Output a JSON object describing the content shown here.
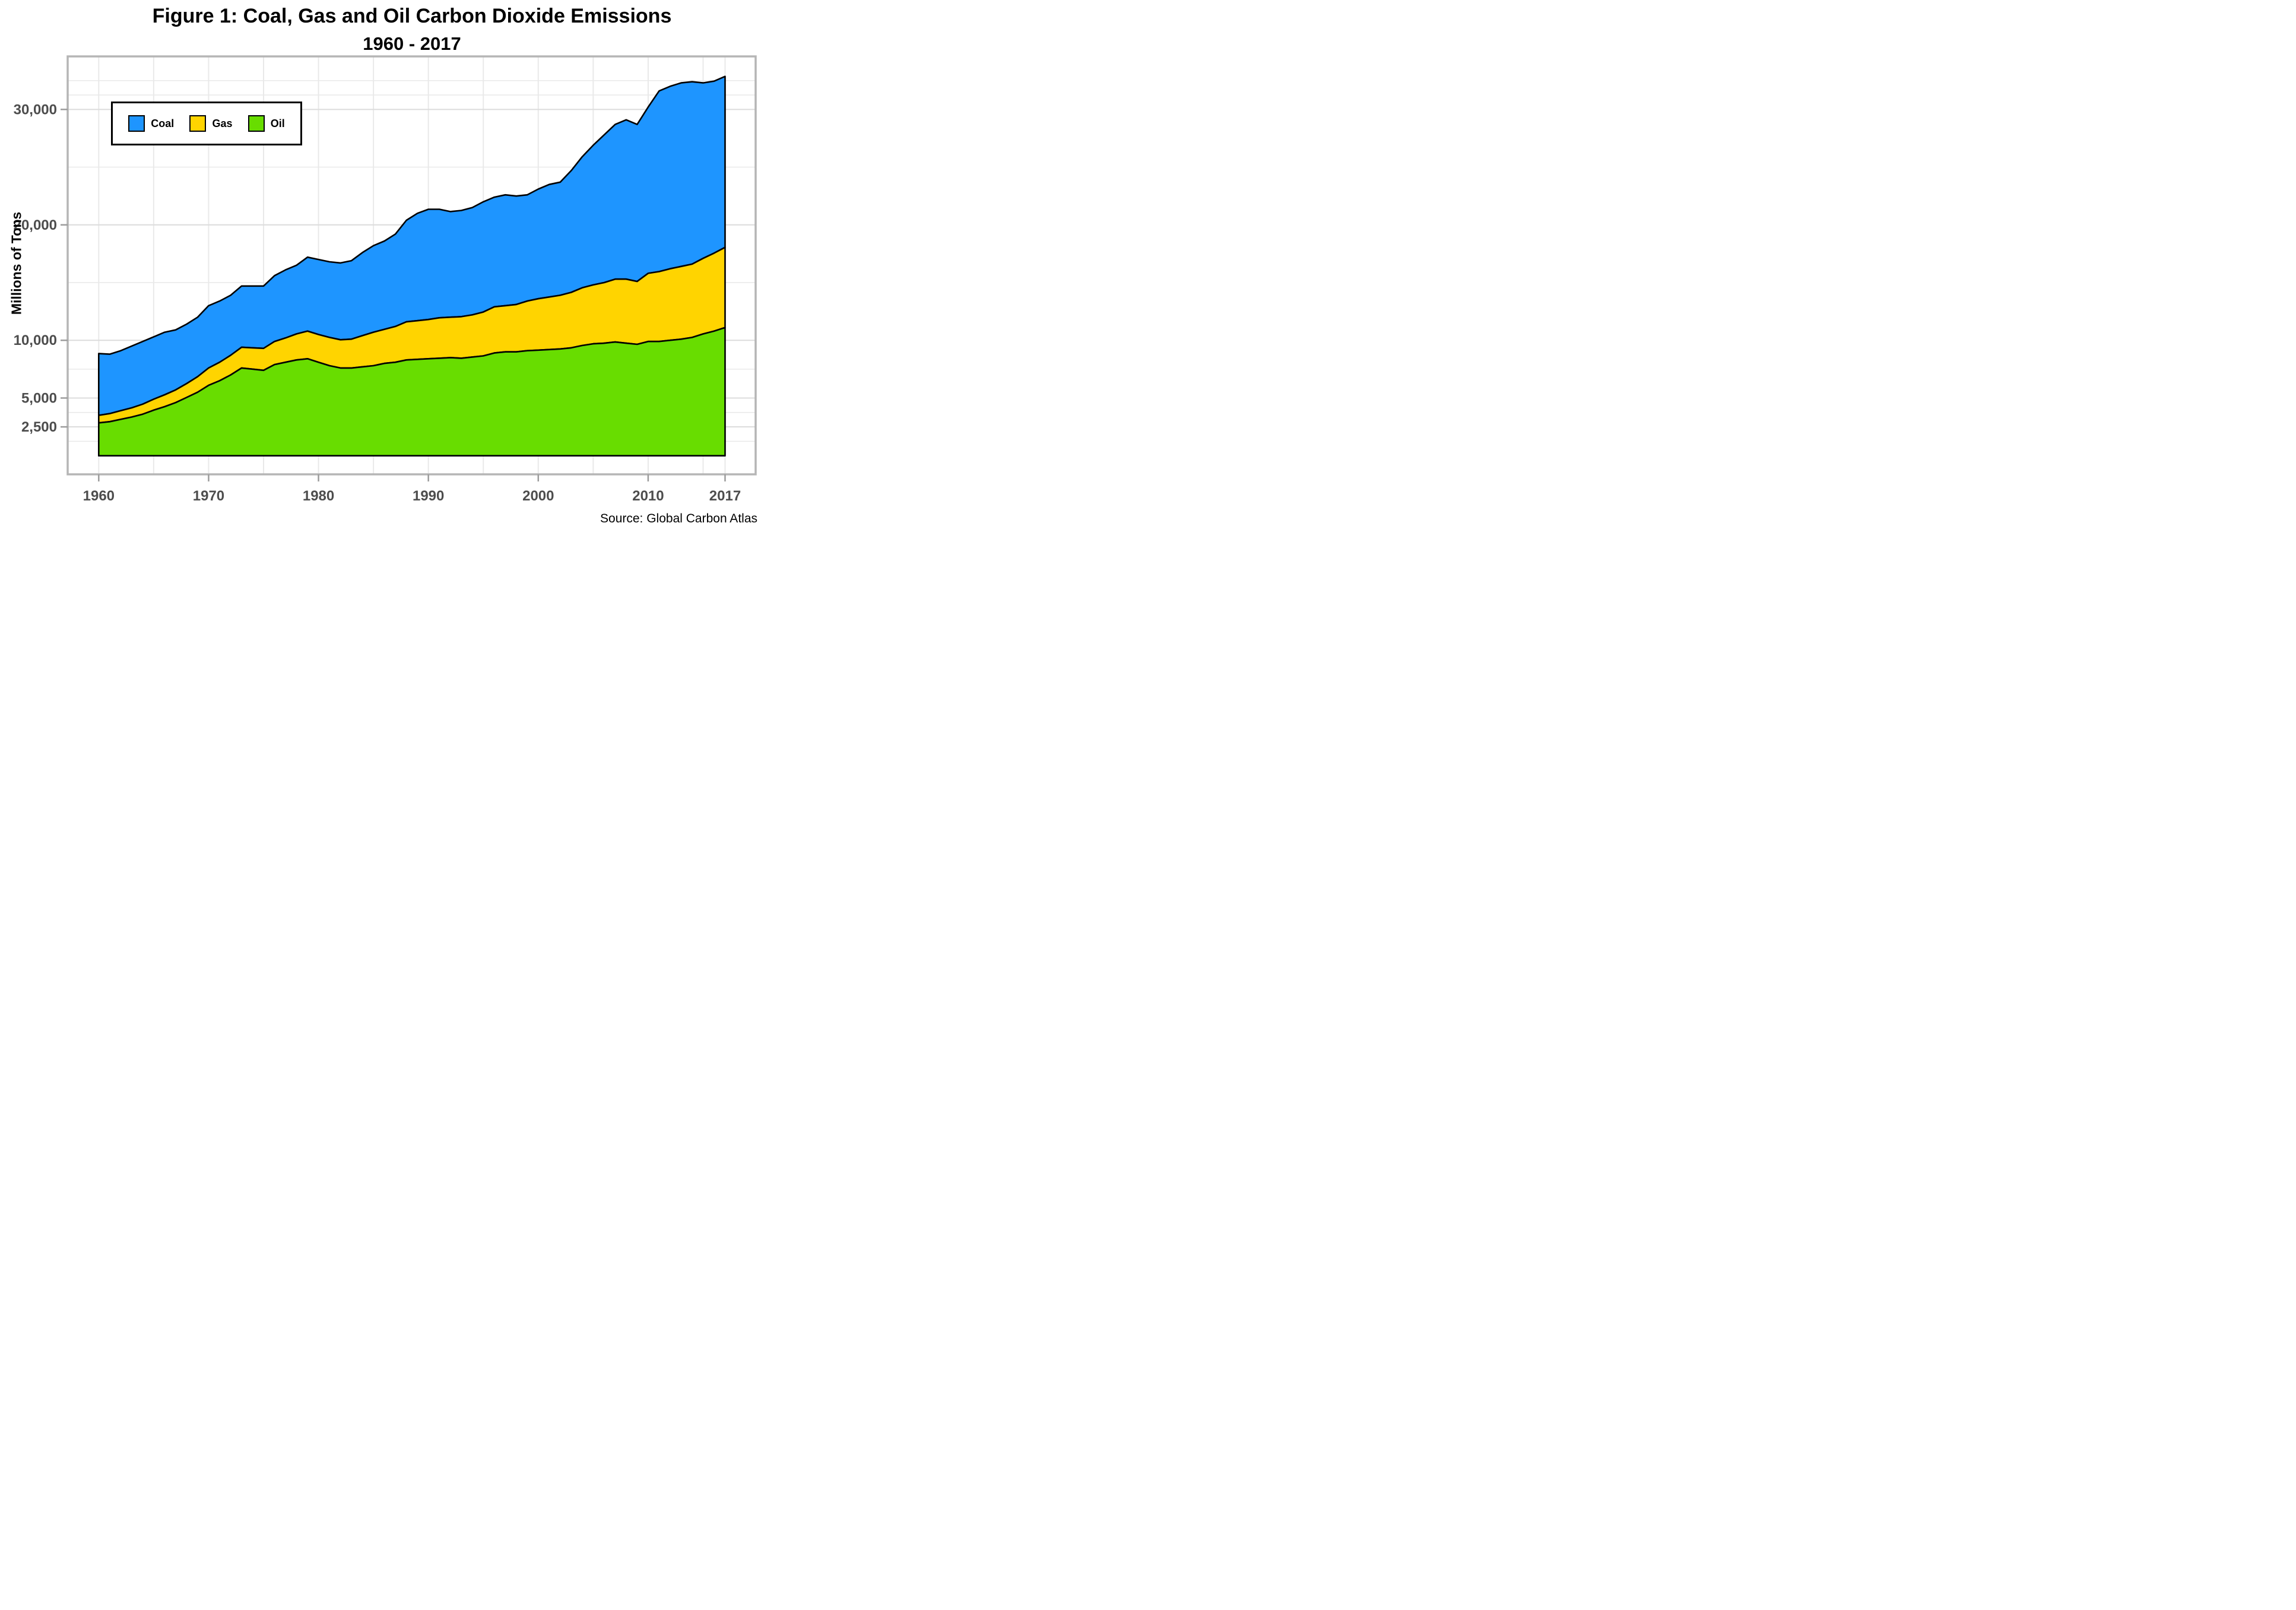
{
  "title": {
    "line1": "Figure 1: Coal, Gas and Oil Carbon Dioxide Emissions",
    "line2": "1960 - 2017"
  },
  "source": "Source: Global Carbon Atlas",
  "y_axis": {
    "title": "Millions of Tons",
    "major_ticks": [
      {
        "value": 2500,
        "label": "2,500"
      },
      {
        "value": 5000,
        "label": "5,000"
      },
      {
        "value": 10000,
        "label": "10,000"
      },
      {
        "value": 20000,
        "label": "20,000"
      },
      {
        "value": 30000,
        "label": "30,000"
      }
    ],
    "minor_tick_values": [
      1250,
      3750,
      7500,
      15000,
      25000,
      31250,
      32500
    ]
  },
  "x_axis": {
    "major_ticks": [
      {
        "year": 1960,
        "label": "1960"
      },
      {
        "year": 1970,
        "label": "1970"
      },
      {
        "year": 1980,
        "label": "1980"
      },
      {
        "year": 1990,
        "label": "1990"
      },
      {
        "year": 2000,
        "label": "2000"
      },
      {
        "year": 2010,
        "label": "2010"
      },
      {
        "year": 2017,
        "label": "2017"
      }
    ],
    "minor_gridline_years": [
      1960,
      1965,
      1970,
      1975,
      1980,
      1985,
      1990,
      1995,
      2000,
      2005,
      2010,
      2015,
      2017
    ]
  },
  "legend": {
    "items": [
      {
        "label": "Coal",
        "series": "Coal"
      },
      {
        "label": "Gas",
        "series": "Gas"
      },
      {
        "label": "Oil",
        "series": "Oil"
      }
    ]
  },
  "colors": {
    "coal": "#1E95FF",
    "gas": "#FFD400",
    "oil": "#68DD00",
    "area_outline": "#000000",
    "grid_major": "#DCDCDC",
    "grid_minor": "#E9E9E9",
    "panel_border": "#B5B5B5",
    "tick_mark": "#9C9C9C",
    "axis_label": "#4D4D4D",
    "background": "#FFFFFF"
  },
  "chart_data": {
    "type": "area",
    "stacked": true,
    "stack_order_bottom_to_top": [
      "Oil",
      "Gas",
      "Coal"
    ],
    "title": "Figure 1: Coal, Gas and Oil Carbon Dioxide Emissions 1960 - 2017",
    "xlabel": "",
    "ylabel": "Millions of Tons",
    "xlim": [
      1960,
      2017
    ],
    "ylim": [
      0,
      34600
    ],
    "grid": true,
    "legend_position": "top-left-inside",
    "x": [
      1960,
      1961,
      1962,
      1963,
      1964,
      1965,
      1966,
      1967,
      1968,
      1969,
      1970,
      1971,
      1972,
      1973,
      1974,
      1975,
      1976,
      1977,
      1978,
      1979,
      1980,
      1981,
      1982,
      1983,
      1984,
      1985,
      1986,
      1987,
      1988,
      1989,
      1990,
      1991,
      1992,
      1993,
      1994,
      1995,
      1996,
      1997,
      1998,
      1999,
      2000,
      2001,
      2002,
      2003,
      2004,
      2005,
      2006,
      2007,
      2008,
      2009,
      2010,
      2011,
      2012,
      2013,
      2014,
      2015,
      2016,
      2017
    ],
    "series": [
      {
        "name": "Oil",
        "color_key": "oil",
        "values": [
          2850,
          2950,
          3150,
          3350,
          3600,
          3950,
          4250,
          4600,
          5050,
          5500,
          6100,
          6500,
          7000,
          7600,
          7500,
          7400,
          7900,
          8100,
          8300,
          8400,
          8100,
          7800,
          7600,
          7600,
          7700,
          7800,
          8000,
          8100,
          8300,
          8350,
          8400,
          8450,
          8500,
          8450,
          8550,
          8650,
          8900,
          9000,
          9000,
          9100,
          9150,
          9200,
          9250,
          9350,
          9550,
          9700,
          9750,
          9850,
          9750,
          9650,
          9900,
          9900,
          10000,
          10100,
          10250,
          10550,
          10800,
          11100
        ]
      },
      {
        "name": "Gas",
        "color_key": "gas",
        "values": [
          650,
          700,
          750,
          800,
          870,
          950,
          1030,
          1100,
          1200,
          1350,
          1500,
          1600,
          1700,
          1800,
          1850,
          1900,
          2000,
          2100,
          2250,
          2400,
          2400,
          2450,
          2450,
          2500,
          2700,
          2900,
          2950,
          3100,
          3300,
          3350,
          3400,
          3500,
          3500,
          3600,
          3650,
          3800,
          4000,
          4000,
          4100,
          4300,
          4450,
          4550,
          4650,
          4800,
          5000,
          5100,
          5250,
          5450,
          5550,
          5450,
          5900,
          6050,
          6200,
          6300,
          6350,
          6550,
          6750,
          6950
        ]
      },
      {
        "name": "Coal",
        "color_key": "coal",
        "values": [
          5350,
          5150,
          5200,
          5350,
          5430,
          5400,
          5420,
          5200,
          5150,
          5150,
          5400,
          5300,
          5200,
          5300,
          5350,
          5400,
          5700,
          5900,
          5950,
          6400,
          6500,
          6550,
          6650,
          6800,
          7200,
          7500,
          7650,
          8000,
          8800,
          9300,
          9550,
          9400,
          9150,
          9200,
          9300,
          9550,
          9500,
          9600,
          9400,
          9200,
          9500,
          9750,
          9800,
          10550,
          11350,
          12100,
          12800,
          13400,
          13800,
          13600,
          14400,
          15650,
          15800,
          15900,
          15800,
          15200,
          14900,
          14810
        ]
      }
    ]
  }
}
